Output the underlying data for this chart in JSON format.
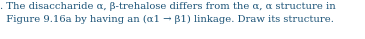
{
  "line1": ". The disaccharide α, β-trehalose differs from the α, α structure in",
  "line2": "  Figure 9.16a by having an (α1 → β1) linkage. Draw its structure.",
  "text_color": "#1a5276",
  "background_color": "#ffffff",
  "fontsize": 7.2,
  "fig_width": 3.65,
  "fig_height": 0.39,
  "dpi": 100
}
